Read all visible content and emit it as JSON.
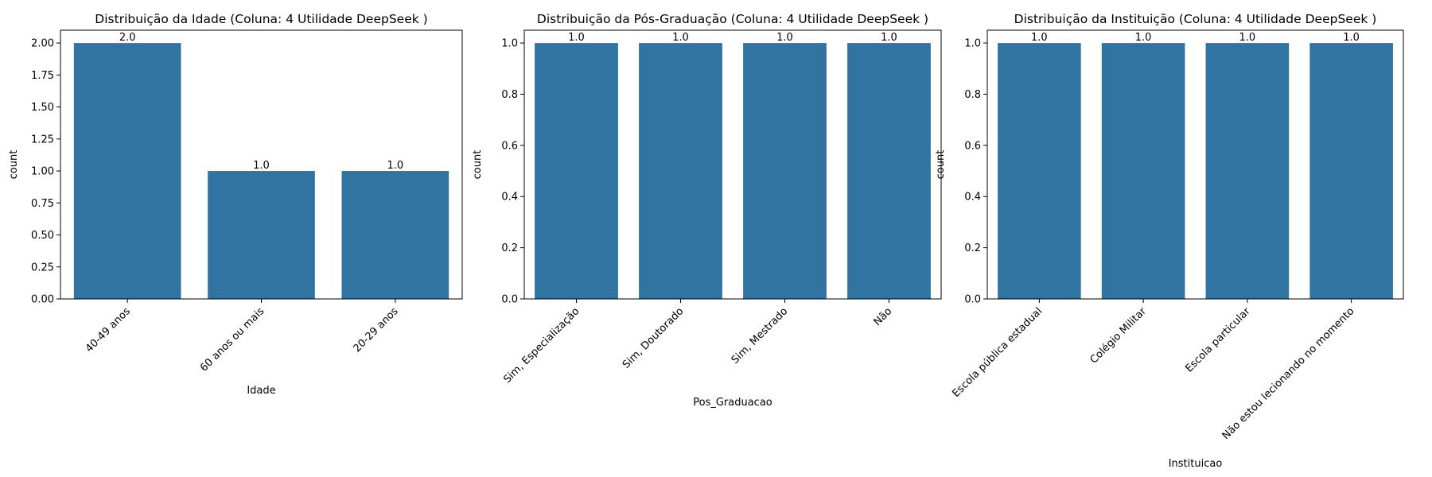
{
  "figure": {
    "background": "#ffffff",
    "bar_color": "#3274a1"
  },
  "chart_data": [
    {
      "type": "bar",
      "title": "Distribuição da Idade (Coluna: 4 Utilidade DeepSeek )",
      "xlabel": "Idade",
      "ylabel": "count",
      "categories": [
        "40-49 anos",
        "60 anos ou mais",
        "20-29 anos"
      ],
      "values": [
        2.0,
        1.0,
        1.0
      ],
      "data_labels": [
        "2.0",
        "1.0",
        "1.0"
      ],
      "ylim": [
        0,
        2.1
      ],
      "yticks": [
        0.0,
        0.25,
        0.5,
        0.75,
        1.0,
        1.25,
        1.5,
        1.75,
        2.0
      ],
      "ytick_labels": [
        "0.00",
        "0.25",
        "0.50",
        "0.75",
        "1.00",
        "1.25",
        "1.50",
        "1.75",
        "2.00"
      ],
      "grid": false,
      "legend": "none",
      "xtick_rotation": 45
    },
    {
      "type": "bar",
      "title": "Distribuição da Pós-Graduação (Coluna: 4 Utilidade DeepSeek )",
      "xlabel": "Pos_Graduacao",
      "ylabel": "count",
      "categories": [
        "Sim, Especialização",
        "Sim, Doutorado",
        "Sim, Mestrado",
        "Não"
      ],
      "values": [
        1.0,
        1.0,
        1.0,
        1.0
      ],
      "data_labels": [
        "1.0",
        "1.0",
        "1.0",
        "1.0"
      ],
      "ylim": [
        0,
        1.05
      ],
      "yticks": [
        0.0,
        0.2,
        0.4,
        0.6,
        0.8,
        1.0
      ],
      "ytick_labels": [
        "0.0",
        "0.2",
        "0.4",
        "0.6",
        "0.8",
        "1.0"
      ],
      "grid": false,
      "legend": "none",
      "xtick_rotation": 45
    },
    {
      "type": "bar",
      "title": "Distribuição da Instituição (Coluna: 4 Utilidade DeepSeek )",
      "xlabel": "Instituicao",
      "ylabel": "count",
      "categories": [
        "Escola pública estadual",
        "Colégio Militar",
        "Escola particular",
        "Não estou lecionando no momento"
      ],
      "values": [
        1.0,
        1.0,
        1.0,
        1.0
      ],
      "data_labels": [
        "1.0",
        "1.0",
        "1.0",
        "1.0"
      ],
      "ylim": [
        0,
        1.05
      ],
      "yticks": [
        0.0,
        0.2,
        0.4,
        0.6,
        0.8,
        1.0
      ],
      "ytick_labels": [
        "0.0",
        "0.2",
        "0.4",
        "0.6",
        "0.8",
        "1.0"
      ],
      "grid": false,
      "legend": "none",
      "xtick_rotation": 45
    }
  ]
}
